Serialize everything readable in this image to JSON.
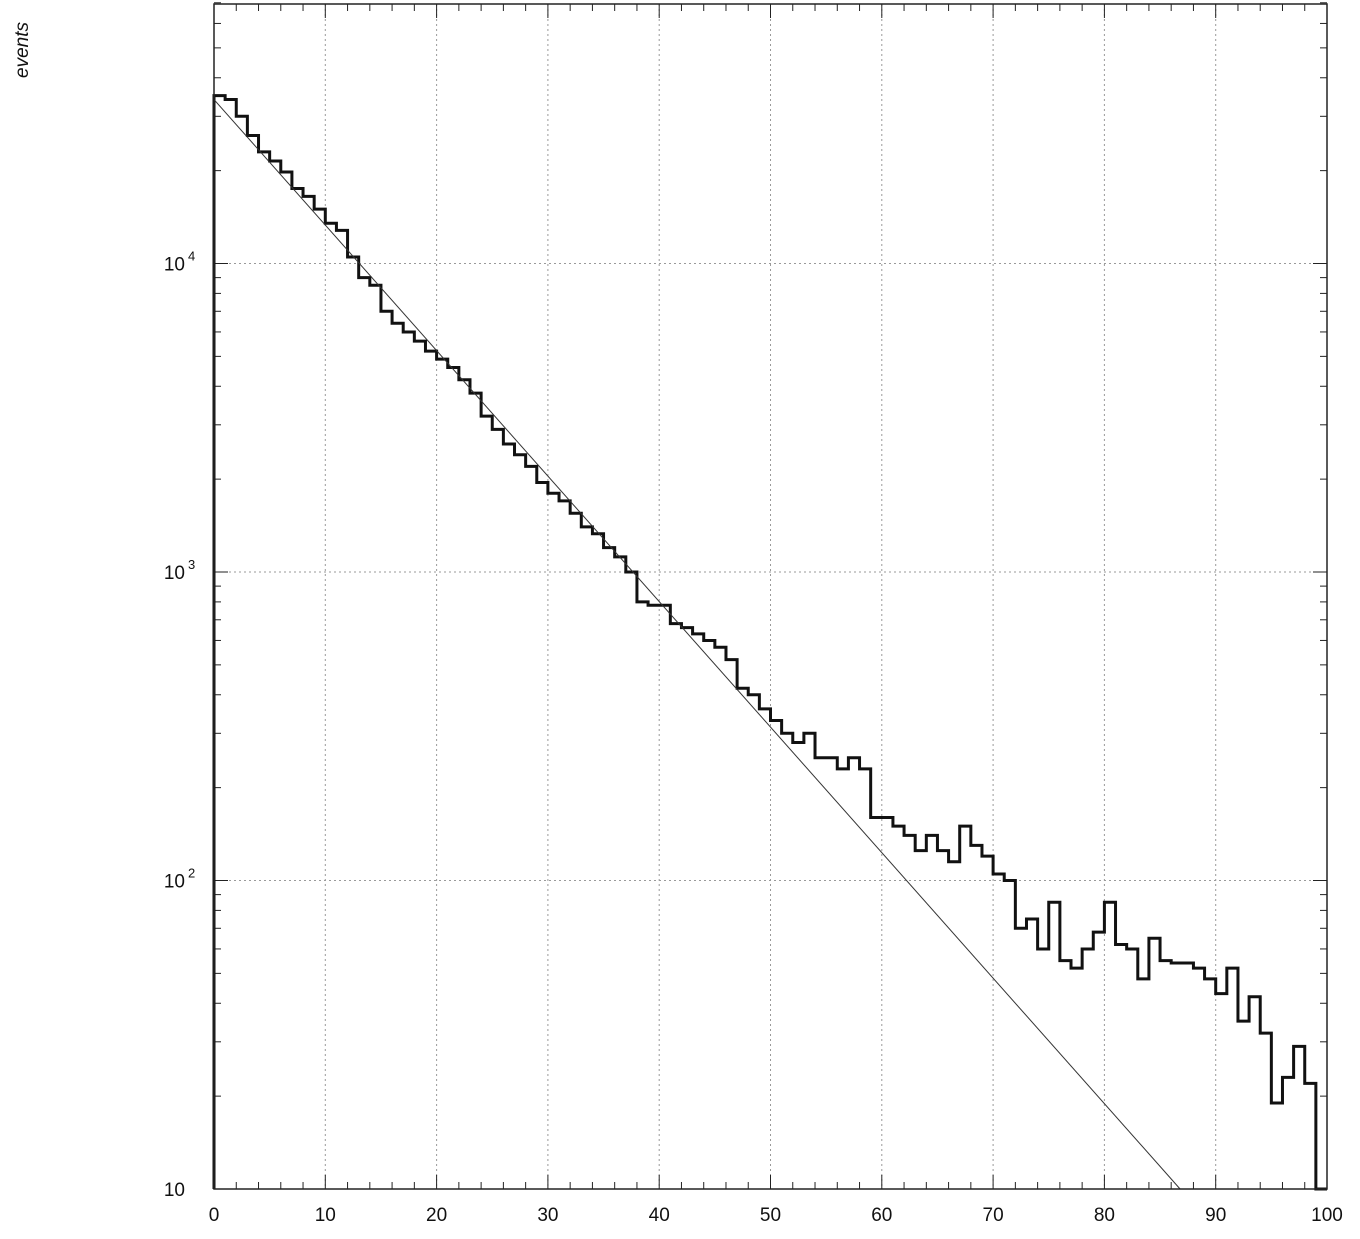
{
  "chart_data": {
    "type": "line",
    "ylabel": "events",
    "xlabel": "",
    "title": "",
    "xlim": [
      0,
      100
    ],
    "ylim": [
      10,
      70000
    ],
    "yscale": "log",
    "grid": true,
    "x_ticks": [
      0,
      10,
      20,
      30,
      40,
      50,
      60,
      70,
      80,
      90,
      100
    ],
    "x_tick_labels": [
      "0",
      "10",
      "20",
      "30",
      "40",
      "50",
      "60",
      "70",
      "80",
      "90",
      "100"
    ],
    "y_ticks": [
      {
        "value": 10,
        "base": "10",
        "exp": ""
      },
      {
        "value": 100,
        "base": "10",
        "exp": "2"
      },
      {
        "value": 1000,
        "base": "10",
        "exp": "3"
      },
      {
        "value": 10000,
        "base": "10",
        "exp": "4"
      }
    ],
    "series": [
      {
        "style": "histogram",
        "bin_width": 1,
        "bin_start": 0,
        "values": [
          35000,
          34000,
          30000,
          26000,
          23000,
          21500,
          19800,
          17500,
          16500,
          15000,
          13500,
          12800,
          10500,
          9000,
          8500,
          7000,
          6400,
          6000,
          5600,
          5200,
          4900,
          4600,
          4200,
          3800,
          3200,
          2900,
          2600,
          2400,
          2200,
          1950,
          1800,
          1700,
          1550,
          1400,
          1330,
          1200,
          1120,
          1000,
          800,
          780,
          780,
          680,
          660,
          630,
          600,
          570,
          520,
          420,
          400,
          360,
          330,
          300,
          280,
          300,
          250,
          250,
          230,
          250,
          230,
          160,
          160,
          150,
          140,
          125,
          140,
          125,
          115,
          150,
          130,
          120,
          105,
          100,
          70,
          75,
          60,
          85,
          55,
          52,
          60,
          68,
          85,
          62,
          60,
          48,
          65,
          55,
          54,
          54,
          52,
          48,
          43,
          52,
          35,
          42,
          32,
          19,
          23,
          29,
          22,
          0
        ]
      },
      {
        "style": "fit-line",
        "x": [
          0,
          86.8
        ],
        "values": [
          34000,
          10
        ]
      }
    ]
  }
}
